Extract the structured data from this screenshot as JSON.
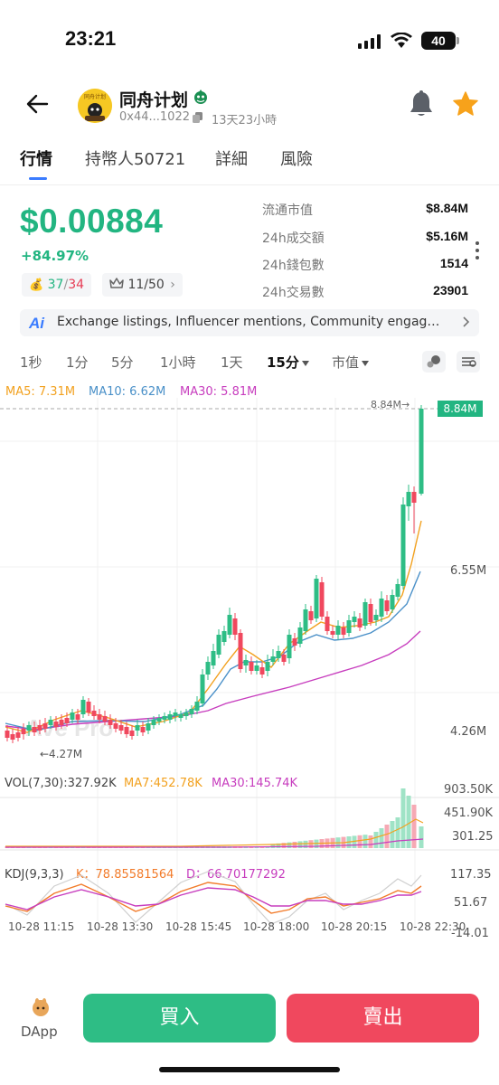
{
  "status": {
    "time": "23:21",
    "battery": "40"
  },
  "token": {
    "name": "同舟计划",
    "avatar_text": "同舟计划",
    "address": "0x44...1022",
    "age": "13天23小時"
  },
  "tabs": [
    {
      "label": "行情"
    },
    {
      "label": "持幣人50721"
    },
    {
      "label": "詳細"
    },
    {
      "label": "風險"
    }
  ],
  "price": {
    "value": "$0.00884",
    "change": "+84.97%",
    "buy_count": "37",
    "separator": "/",
    "sell_count": "34",
    "holders_badge": "11/50"
  },
  "stats": [
    {
      "label": "流通市值",
      "value": "$8.84M"
    },
    {
      "label": "24h成交額",
      "value": "$5.16M"
    },
    {
      "label": "24h錢包數",
      "value": "1514"
    },
    {
      "label": "24h交易數",
      "value": "23901"
    }
  ],
  "ai": {
    "icon_text": "Ai",
    "text": "Exchange listings, Influencer mentions, Community engagement"
  },
  "intervals": [
    {
      "label": "1秒"
    },
    {
      "label": "1分"
    },
    {
      "label": "5分"
    },
    {
      "label": "1小時"
    },
    {
      "label": "1天"
    },
    {
      "label": "15分"
    },
    {
      "label": "市值"
    }
  ],
  "chart": {
    "ma5": "MA5: 7.31M",
    "ma10": "MA10: 6.62M",
    "ma30": "MA30: 5.81M",
    "current_tag": "8.84M",
    "current_marker": "8.84M→",
    "low_marker": "←4.27M",
    "y_labels": [
      "6.55M",
      "4.26M"
    ],
    "watermark": "Ave Pro",
    "vol_legend": "VOL(7,30):327.92K",
    "vol_ma7": "MA7:452.78K",
    "vol_ma30": "MA30:145.74K",
    "vol_labels": [
      "903.50K",
      "451.90K",
      "301.25"
    ],
    "kdj_legend": "KDJ(9,3,3)",
    "kdj_k": "K：78.85581564",
    "kdj_d": "D：66.70177292",
    "kdj_labels": [
      "117.35",
      "51.67",
      "-14.01"
    ],
    "time_labels": [
      "10-28 11:15",
      "10-28 13:30",
      "10-28 15:45",
      "10-28 18:00",
      "10-28 20:15",
      "10-28 22:30"
    ],
    "colors": {
      "up": "#2ebd85",
      "down": "#f0485e",
      "ma5": "#f2a11f",
      "ma10": "#4a90c8",
      "ma30": "#c73dbe"
    }
  },
  "bottom": {
    "dapp": "DApp",
    "buy": "買入",
    "sell": "賣出"
  }
}
